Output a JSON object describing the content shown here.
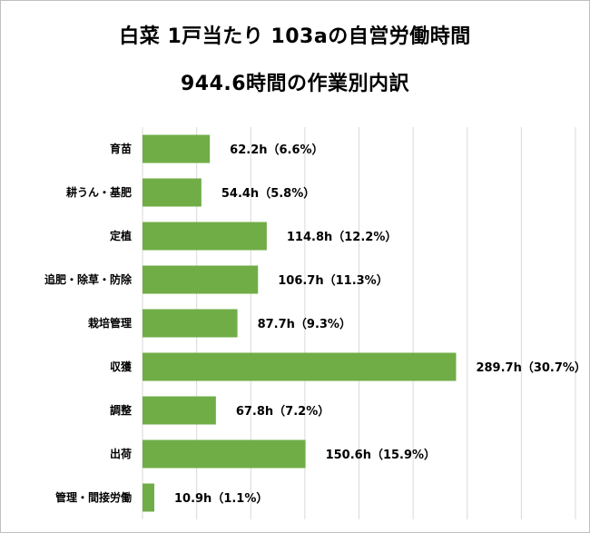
{
  "chart_data": {
    "type": "bar",
    "orientation": "horizontal",
    "title": "白菜 1戸当たり 103aの自営労働時間",
    "subtitle": "944.6時間の作業別内訳",
    "categories": [
      "育苗",
      "耕うん・基肥",
      "定植",
      "追肥・除草・防除",
      "栽培管理",
      "収獲",
      "調整",
      "出荷",
      "管理・間接労働"
    ],
    "values": [
      62.2,
      54.4,
      114.8,
      106.7,
      87.7,
      289.7,
      67.8,
      150.6,
      10.9
    ],
    "data_labels": [
      "62.2h（6.6%）",
      "54.4h（5.8%）",
      "114.8h（12.2%）",
      "106.7h（11.3%）",
      "87.7h（9.3%）",
      "289.7h（30.7%）",
      "67.8h（7.2%）",
      "150.6h（15.9%）",
      "10.9h（1.1%）"
    ],
    "xlim": [
      0,
      400
    ],
    "grid": true,
    "bar_color": "#70ad47",
    "grid_color": "#d9d9d9"
  }
}
